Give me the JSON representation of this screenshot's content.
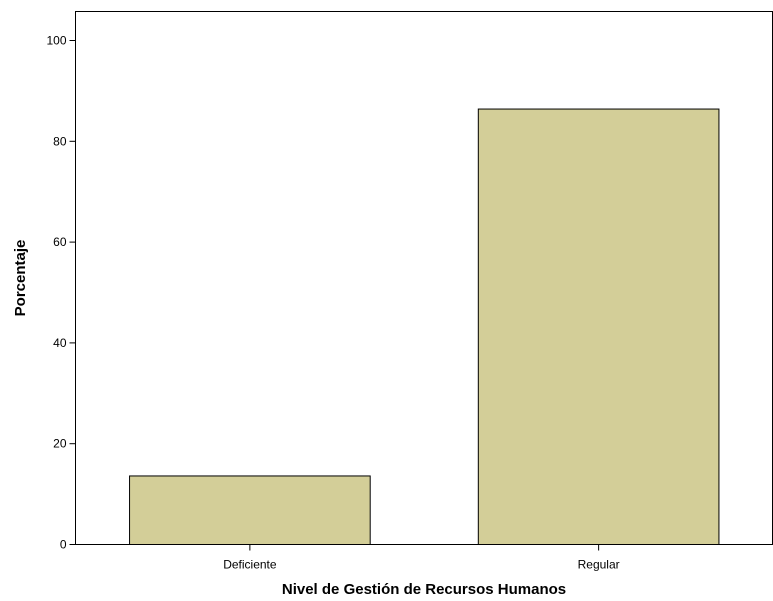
{
  "chart_data": {
    "type": "bar",
    "title": "",
    "xlabel": "Nivel de Gestión de Recursos Humanos",
    "ylabel": "Porcentaje",
    "categories": [
      "Deficiente",
      "Regular"
    ],
    "values": [
      13.6,
      86.4
    ],
    "ylim": [
      0,
      105
    ],
    "yticks": [
      0,
      20,
      40,
      60,
      80,
      100
    ],
    "grid": false,
    "legend": "none",
    "colors": {
      "bar_fill": "#d3ce98",
      "bar_stroke": "#000000",
      "background": "#ffffff"
    }
  }
}
